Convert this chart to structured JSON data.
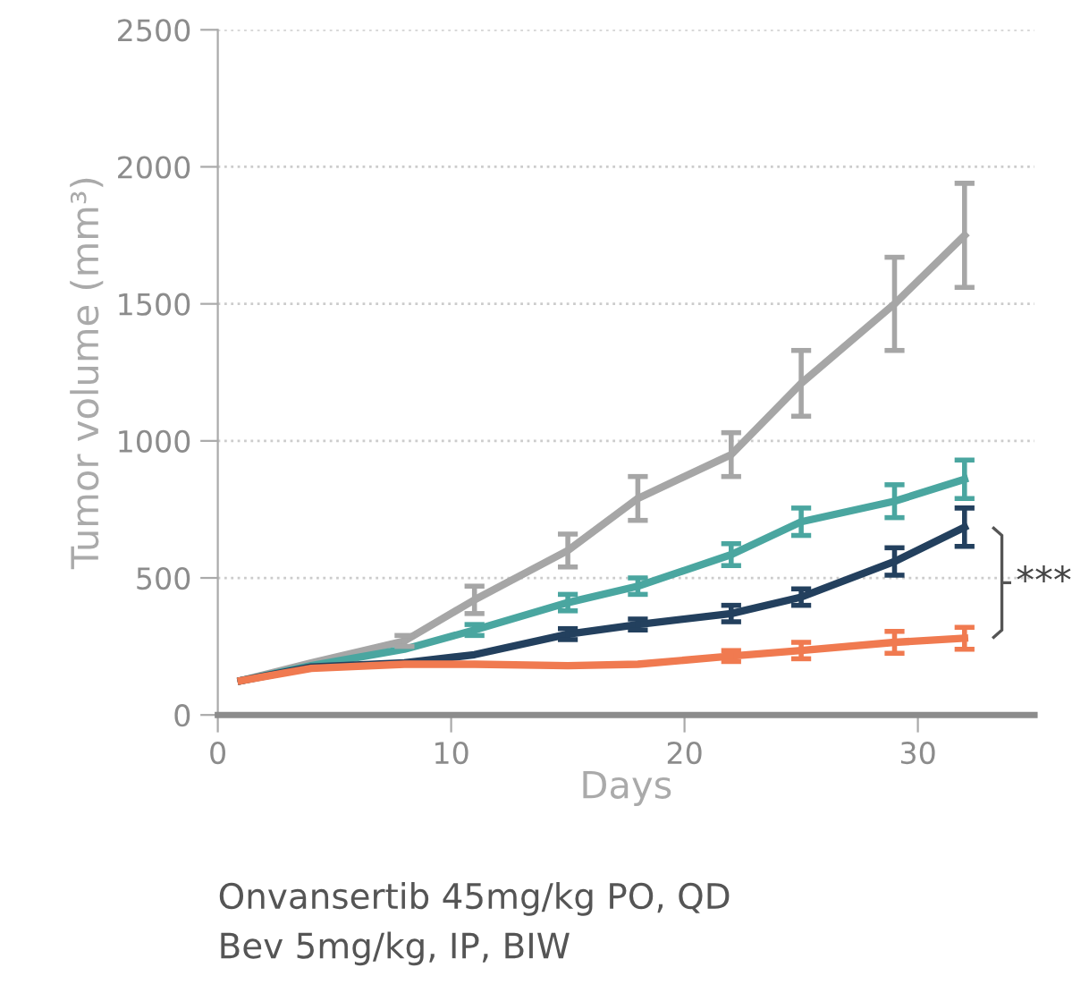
{
  "chart_data": {
    "type": "line",
    "xlabel": "Days",
    "ylabel": "Tumor volume (mm³)",
    "xlim": [
      0,
      35
    ],
    "xticks": [
      0,
      10,
      20,
      30
    ],
    "ylim": [
      0,
      2500
    ],
    "yticks": [
      0,
      500,
      1000,
      1500,
      2000,
      2500
    ],
    "grid": "y",
    "legend": false,
    "marker": "none",
    "line_style": "solid",
    "x": [
      1,
      4,
      8,
      11,
      15,
      18,
      22,
      25,
      29,
      32
    ],
    "series": [
      {
        "color": "#a6a6a6",
        "values": [
          125,
          190,
          270,
          420,
          600,
          790,
          950,
          1210,
          1500,
          1750
        ],
        "errors": [
          null,
          null,
          20,
          50,
          60,
          80,
          80,
          120,
          170,
          190
        ]
      },
      {
        "color": "#4aa6a0",
        "values": [
          125,
          180,
          240,
          310,
          410,
          470,
          585,
          705,
          780,
          860
        ],
        "errors": [
          null,
          null,
          null,
          20,
          30,
          30,
          40,
          50,
          60,
          70
        ]
      },
      {
        "color": "#23405e",
        "values": [
          125,
          175,
          190,
          220,
          295,
          330,
          370,
          430,
          560,
          685
        ],
        "errors": [
          null,
          null,
          null,
          null,
          20,
          20,
          30,
          30,
          50,
          70
        ]
      },
      {
        "color": "#f07a50",
        "values": [
          125,
          170,
          185,
          185,
          180,
          185,
          215,
          235,
          265,
          280
        ],
        "errors": [
          null,
          null,
          null,
          null,
          null,
          null,
          20,
          30,
          40,
          40
        ]
      }
    ],
    "annotations": [
      "***",
      "Onvansertib 45mg/kg PO, QD",
      "Bev 5mg/kg, IP, BIW"
    ]
  }
}
